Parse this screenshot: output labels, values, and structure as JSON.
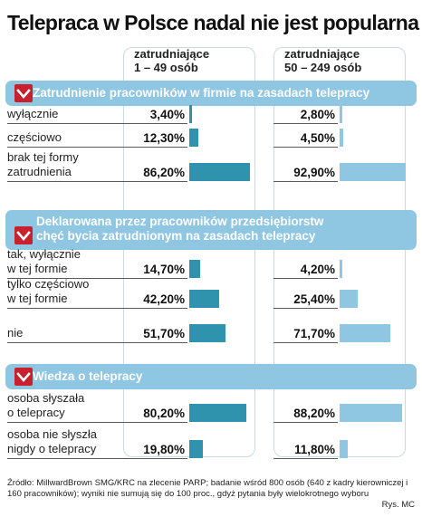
{
  "title": "Telepraca w Polsce nadal nie jest popularna",
  "columns": [
    {
      "line1": "zatrudniające",
      "line2": "1 – 49 osób"
    },
    {
      "line1": "zatrudniające",
      "line2": "50 – 249 osób"
    }
  ],
  "chart_data": {
    "type": "bar",
    "title": "Telepraca w Polsce nadal nie jest popularna",
    "series": [
      {
        "name": "zatrudniające 1 – 49 osób"
      },
      {
        "name": "zatrudniające 50 – 249 osób"
      }
    ],
    "sections": [
      {
        "title": "Zatrudnienie pracowników w firmie na zasadach telepracy",
        "rows": [
          {
            "label": "wyłącznie",
            "values": [
              3.4,
              2.8
            ],
            "display": [
              "3,40%",
              "2,80%"
            ]
          },
          {
            "label": "częściowo",
            "values": [
              12.3,
              4.5
            ],
            "display": [
              "12,30%",
              "4,50%"
            ]
          },
          {
            "label": "brak tej formy zatrudnienia",
            "values": [
              86.2,
              92.9
            ],
            "display": [
              "86,20%",
              "92,90%"
            ]
          }
        ]
      },
      {
        "title": "Deklarowana przez pracowników przedsiębiorstw chęć bycia zatrudnionym na zasadach telepracy",
        "rows": [
          {
            "label": "tak, wyłącznie w tej formie",
            "values": [
              14.7,
              4.2
            ],
            "display": [
              "14,70%",
              "4,20%"
            ]
          },
          {
            "label": "tylko częściowo w tej formie",
            "values": [
              42.2,
              25.4
            ],
            "display": [
              "42,20%",
              "25,40%"
            ]
          },
          {
            "label": "nie",
            "values": [
              51.7,
              71.7
            ],
            "display": [
              "51,70%",
              "71,70%"
            ]
          }
        ]
      },
      {
        "title": "Wiedza o telepracy",
        "rows": [
          {
            "label": "osoba słyszała o telepracy",
            "values": [
              80.2,
              88.2
            ],
            "display": [
              "80,20%",
              "88,20%"
            ]
          },
          {
            "label": "osoba nie słyszła nigdy o telepracy",
            "values": [
              19.8,
              11.8
            ],
            "display": [
              "19,80%",
              "11,80%"
            ]
          }
        ]
      }
    ],
    "xlim": [
      0,
      100
    ],
    "colors": {
      "series1": "#2f93ae",
      "series2": "#8fc6e2",
      "band": "#8fc6e2",
      "badge": "#c8202c"
    }
  },
  "footnote": "Źródło: MillwardBrown SMG/KRC na zlecenie PARP; badanie wśród 800 osób (640 z kadry kierowniczej i 160 pracowników); wyniki nie sumują się do 100 proc., gdyż pytania były wielokrotnego wyboru",
  "credit": "Rys. MC",
  "icons": {
    "badge": "chevron-down-icon"
  }
}
